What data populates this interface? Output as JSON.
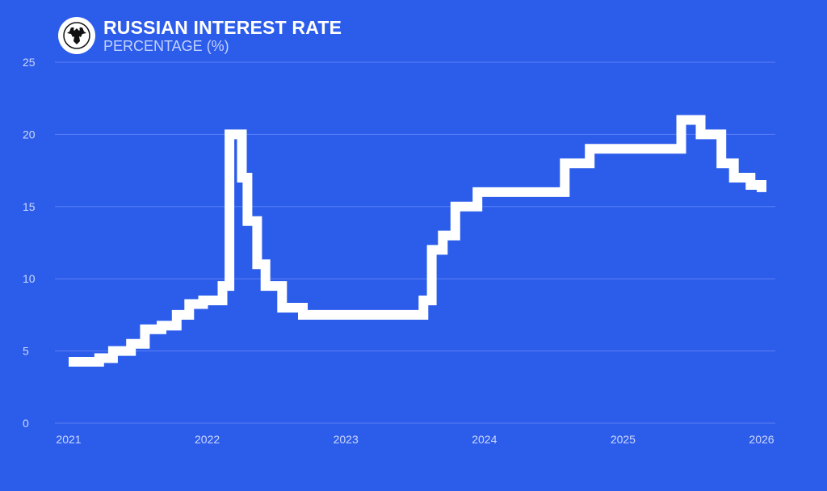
{
  "header": {
    "title": "RUSSIAN INTEREST RATE",
    "subtitle": "PERCENTAGE (%)",
    "emblem_icon": "double-headed-eagle-icon"
  },
  "colors": {
    "background": "#2c5cea",
    "line": "#ffffff",
    "gridline": "#5a81f5",
    "tick_text": "#cdd8ff"
  },
  "chart_data": {
    "type": "line",
    "step": true,
    "title": "RUSSIAN INTEREST RATE",
    "subtitle": "PERCENTAGE (%)",
    "xlabel": "",
    "ylabel": "",
    "xlim": [
      2021.0,
      2026.0
    ],
    "ylim": [
      0,
      25
    ],
    "x_ticks": [
      "2021",
      "2022",
      "2023",
      "2024",
      "2025",
      "2026"
    ],
    "y_ticks": [
      "0",
      "5",
      "10",
      "15",
      "20",
      "25"
    ],
    "grid": true,
    "legend": "none",
    "series": [
      {
        "x": [
          2021.0,
          2021.22,
          2021.32,
          2021.45,
          2021.55,
          2021.67,
          2021.78,
          2021.87,
          2021.97,
          2022.11,
          2022.16,
          2022.25,
          2022.29,
          2022.36,
          2022.42,
          2022.54,
          2022.69,
          2023.56,
          2023.62,
          2023.7,
          2023.79,
          2023.95,
          2024.58,
          2024.76,
          2025.42,
          2025.56,
          2025.71,
          2025.8,
          2025.92,
          2026.0
        ],
        "y": [
          4.25,
          4.5,
          5.0,
          5.5,
          6.5,
          6.75,
          7.5,
          8.25,
          8.5,
          9.5,
          20.0,
          17.0,
          14.0,
          11.0,
          9.5,
          8.0,
          7.5,
          8.5,
          12.0,
          13.0,
          15.0,
          16.0,
          18.0,
          19.0,
          21.0,
          20.0,
          18.0,
          17.0,
          16.5,
          16.0
        ]
      }
    ]
  }
}
